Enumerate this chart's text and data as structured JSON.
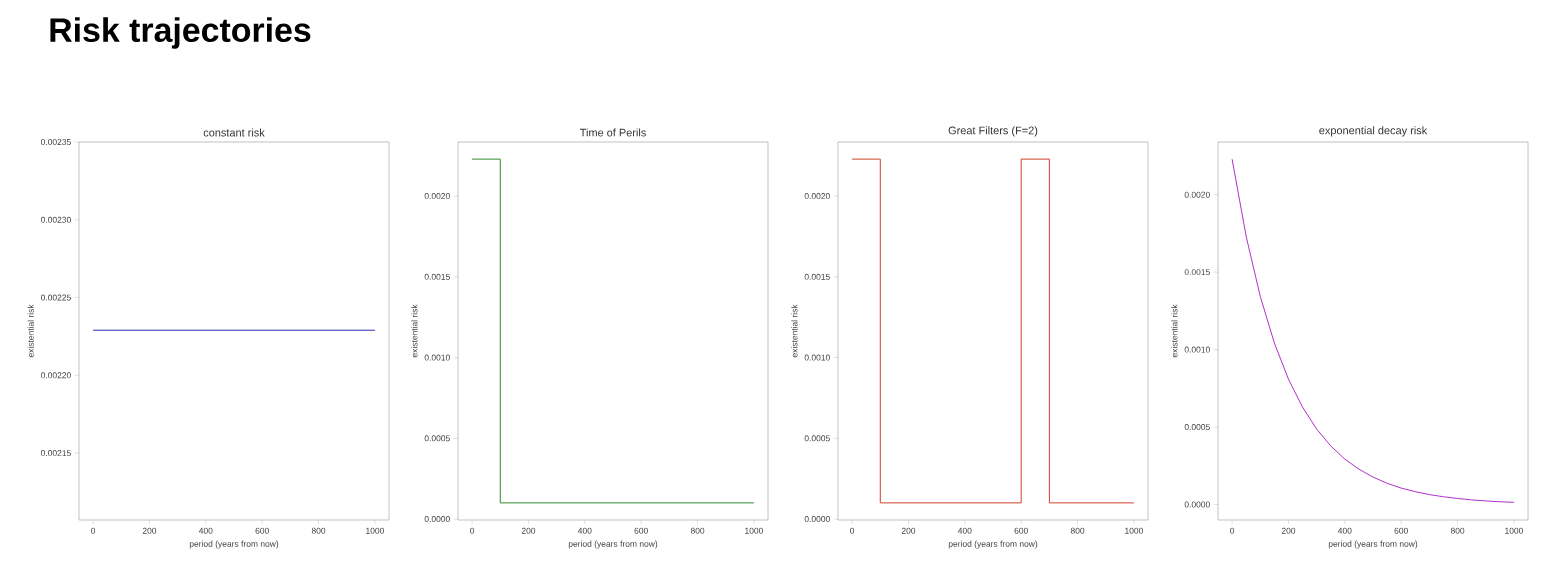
{
  "chart_data": [
    {
      "type": "other",
      "title": "Risk trajectories"
    },
    {
      "type": "line",
      "title": "constant risk",
      "xlabel": "period (years from now)",
      "ylabel": "existential risk",
      "color": "#2a2ab8",
      "x": [
        0,
        1000
      ],
      "values": [
        0.002229,
        0.002229
      ],
      "xlim": [
        -50,
        1050
      ],
      "ylim": [
        0.002107,
        0.00235
      ],
      "xticks": [
        0,
        200,
        400,
        600,
        800,
        1000
      ],
      "yticks": [
        {
          "value": 0.00215,
          "label": "0.00215"
        },
        {
          "value": 0.0022,
          "label": "0.00220"
        },
        {
          "value": 0.00225,
          "label": "0.00225"
        },
        {
          "value": 0.0023,
          "label": "0.00230"
        },
        {
          "value": 0.00235,
          "label": "0.00235"
        }
      ]
    },
    {
      "type": "line",
      "title": "Time of Perils",
      "xlabel": "period (years from now)",
      "ylabel": "existential risk",
      "color": "#2e8b2e",
      "x": [
        0,
        100,
        100,
        1000
      ],
      "values": [
        0.002229,
        0.002229,
        0.0001,
        0.0001
      ],
      "xlim": [
        -50,
        1050
      ],
      "ylim": [
        -6e-06,
        0.002335
      ],
      "xticks": [
        0,
        200,
        400,
        600,
        800,
        1000
      ],
      "yticks": [
        {
          "value": 0,
          "label": "0.0000"
        },
        {
          "value": 0.0005,
          "label": "0.0005"
        },
        {
          "value": 0.001,
          "label": "0.0010"
        },
        {
          "value": 0.0015,
          "label": "0.0015"
        },
        {
          "value": 0.002,
          "label": "0.0020"
        }
      ]
    },
    {
      "type": "line",
      "title": "Great Filters (F=2)",
      "xlabel": "period (years from now)",
      "ylabel": "existential risk",
      "color": "#d0402a",
      "x": [
        0,
        100,
        100,
        600,
        600,
        700,
        700,
        1000
      ],
      "values": [
        0.002229,
        0.002229,
        0.0001,
        0.0001,
        0.002229,
        0.002229,
        0.0001,
        0.0001
      ],
      "xlim": [
        -50,
        1050
      ],
      "ylim": [
        -6e-06,
        0.002335
      ],
      "xticks": [
        0,
        200,
        400,
        600,
        800,
        1000
      ],
      "yticks": [
        {
          "value": 0,
          "label": "0.0000"
        },
        {
          "value": 0.0005,
          "label": "0.0005"
        },
        {
          "value": 0.001,
          "label": "0.0010"
        },
        {
          "value": 0.0015,
          "label": "0.0015"
        },
        {
          "value": 0.002,
          "label": "0.0020"
        }
      ]
    },
    {
      "type": "line",
      "title": "exponential decay risk",
      "xlabel": "period (years from now)",
      "ylabel": "existential risk",
      "color": "#b030c8",
      "x": [
        0,
        50,
        100,
        150,
        200,
        250,
        300,
        350,
        400,
        450,
        500,
        550,
        600,
        650,
        700,
        750,
        800,
        850,
        900,
        950,
        1000
      ],
      "values": [
        0.002229,
        0.00173,
        0.001343,
        0.001042,
        0.000809,
        0.000628,
        0.000487,
        0.000378,
        0.000293,
        0.000228,
        0.000177,
        0.000137,
        0.000106,
        8.3e-05,
        6.4e-05,
        5e-05,
        3.9e-05,
        3e-05,
        2.3e-05,
        1.8e-05,
        1.4e-05
      ],
      "xlim": [
        -50,
        1050
      ],
      "ylim": [
        -0.0001,
        0.00234
      ],
      "xticks": [
        0,
        200,
        400,
        600,
        800,
        1000
      ],
      "yticks": [
        {
          "value": 0,
          "label": "0.0000"
        },
        {
          "value": 0.0005,
          "label": "0.0005"
        },
        {
          "value": 0.001,
          "label": "0.0010"
        },
        {
          "value": 0.0015,
          "label": "0.0015"
        },
        {
          "value": 0.002,
          "label": "0.0020"
        }
      ]
    }
  ]
}
